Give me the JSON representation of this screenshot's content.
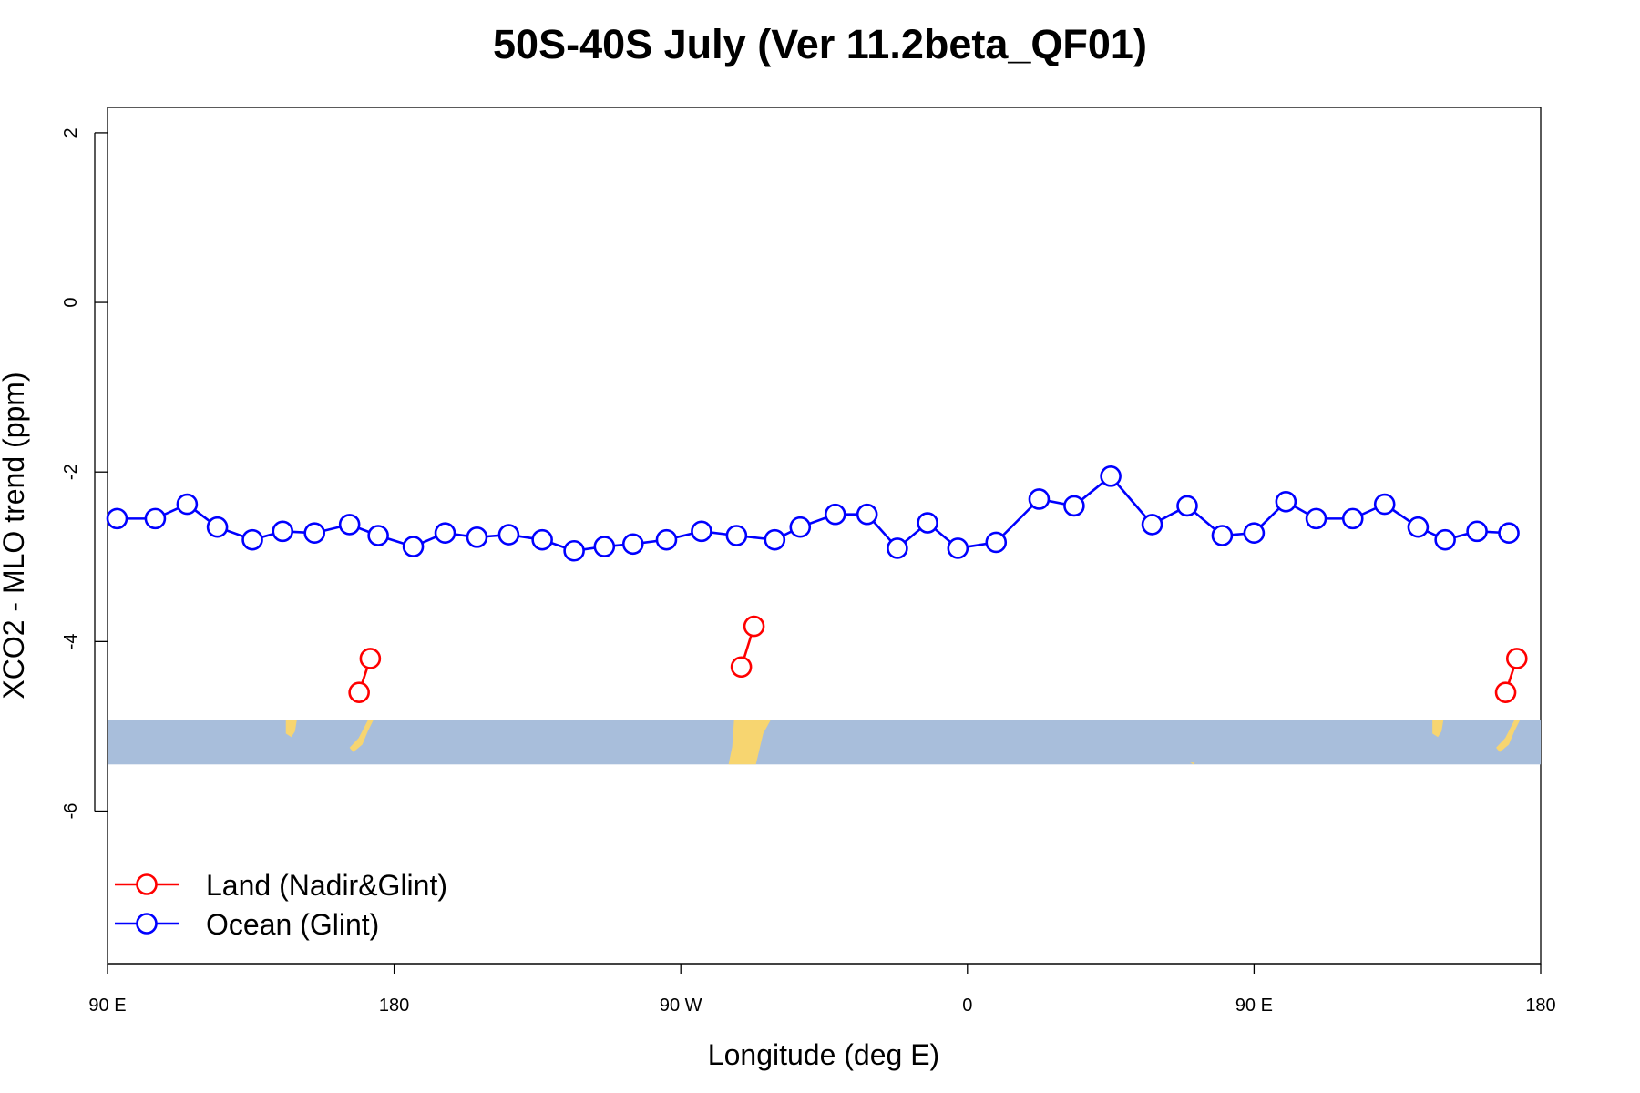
{
  "chart_data": {
    "type": "line",
    "title": "50S-40S July (Ver 11.2beta_QF01)",
    "xlabel": "Longitude (deg E)",
    "ylabel": "XCO2 - MLO trend (ppm)",
    "xlim": [
      90,
      540
    ],
    "ylim": [
      -7.8,
      2.3
    ],
    "x_ticks": [
      {
        "value": 90,
        "label": "90 E"
      },
      {
        "value": 180,
        "label": "180"
      },
      {
        "value": 270,
        "label": "90 W"
      },
      {
        "value": 360,
        "label": "0"
      },
      {
        "value": 450,
        "label": "90 E"
      },
      {
        "value": 540,
        "label": "180"
      }
    ],
    "y_ticks": [
      {
        "value": 2,
        "label": "2"
      },
      {
        "value": 0,
        "label": "0"
      },
      {
        "value": -2,
        "label": "-2"
      },
      {
        "value": -4,
        "label": "-4"
      },
      {
        "value": -6,
        "label": "-6"
      }
    ],
    "series": [
      {
        "name": "Land (Nadir&Glint)",
        "color": "#ff0000",
        "segments": [
          {
            "x": [
              169,
              172.5
            ],
            "y": [
              -4.6,
              -4.2
            ]
          },
          {
            "x": [
              289,
              293
            ],
            "y": [
              -4.3,
              -3.82
            ]
          },
          {
            "x": [
              529,
              532.5
            ],
            "y": [
              -4.6,
              -4.2
            ]
          }
        ]
      },
      {
        "name": "Ocean (Glint)",
        "color": "#0000ff",
        "x": [
          93,
          105,
          115,
          124.5,
          135.5,
          145,
          155,
          166,
          175,
          186,
          196,
          206,
          216,
          226.5,
          236.5,
          246,
          255,
          265.5,
          276.5,
          287.5,
          299.5,
          307.5,
          318.5,
          328.5,
          338,
          347.5,
          357,
          369,
          382.5,
          393.5,
          405,
          418,
          429,
          440,
          450,
          460,
          469.5,
          481,
          491,
          501.5,
          510,
          520,
          530
        ],
        "y": [
          -2.55,
          -2.55,
          -2.38,
          -2.65,
          -2.8,
          -2.7,
          -2.72,
          -2.62,
          -2.75,
          -2.88,
          -2.72,
          -2.77,
          -2.74,
          -2.8,
          -2.93,
          -2.88,
          -2.85,
          -2.8,
          -2.7,
          -2.75,
          -2.8,
          -2.65,
          -2.5,
          -2.5,
          -2.9,
          -2.6,
          -2.9,
          -2.83,
          -2.32,
          -2.4,
          -2.05,
          -2.62,
          -2.4,
          -2.75,
          -2.72,
          -2.35,
          -2.55,
          -2.55,
          -2.38,
          -2.65,
          -2.8,
          -2.7,
          -2.72
        ]
      }
    ],
    "legend_position": "bottom-left",
    "map_strip": {
      "y_range": [
        -5.45,
        -4.93
      ],
      "ocean_color": "#a8bedb",
      "land_color": "#f7d570"
    }
  }
}
